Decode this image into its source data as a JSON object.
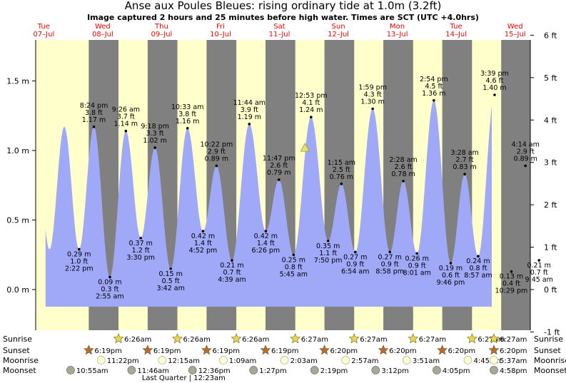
{
  "title": "Anse aux Poules Bleues: rising  ordinary tide at 1.0m (3.2ft)",
  "subtitle": "Image captured 2 hours and 25 minutes before high water. Times are SCT (UTC +4.0hrs)",
  "colors": {
    "day": "#ffffcc",
    "night": "#808080",
    "tide_fill": "#a0a8f8",
    "day_label": "#ff0000",
    "now_marker": "#e8e070",
    "sunrise_icon": "#e8d84a",
    "sunset_icon": "#b86a32",
    "moonrise_icon": "#ffffd8",
    "moonset_icon": "#a8a898"
  },
  "chart_data": {
    "type": "area",
    "title": "Anse aux Poules Bleues: rising  ordinary tide at 1.0m (3.2ft)",
    "x_unit": "hours from 00:00 Tue 07-Jul",
    "xlim": [
      -3.3,
      198.2
    ],
    "ylim_m": [
      -0.31,
      1.8
    ],
    "ylim_ft": [
      -1,
      6
    ],
    "left_ticks": [
      "0.0 m",
      "0.5 m",
      "1.0 m",
      "1.5 m"
    ],
    "left_tick_values": [
      0,
      0.5,
      1.0,
      1.5
    ],
    "right_ticks": [
      "-1 ft",
      "0 ft",
      "1 ft",
      "2 ft",
      "3 ft",
      "4 ft",
      "5 ft",
      "6 ft"
    ],
    "right_tick_values": [
      -1,
      0,
      1,
      2,
      3,
      4,
      5,
      6
    ],
    "days": [
      {
        "name": "Tue",
        "date": "07–Jul"
      },
      {
        "name": "Wed",
        "date": "08–Jul"
      },
      {
        "name": "Thu",
        "date": "09–Jul"
      },
      {
        "name": "Fri",
        "date": "10–Jul"
      },
      {
        "name": "Sat",
        "date": "11–Jul"
      },
      {
        "name": "Sun",
        "date": "12–Jul"
      },
      {
        "name": "Mon",
        "date": "13–Jul"
      },
      {
        "name": "Tue",
        "date": "14–Jul"
      },
      {
        "name": "Wed",
        "date": "15–Jul"
      }
    ],
    "start_hour": 0.7,
    "start_height": 0.95,
    "end_hour": 182.5,
    "tides": [
      {
        "kind": "low",
        "hour": 14.37,
        "m": 0.29,
        "lines": [
          "0.29 m",
          "1.0 ft",
          "2:22 pm"
        ]
      },
      {
        "kind": "high",
        "hour": 20.4,
        "m": 1.17,
        "lines": [
          "8:24 pm",
          "3.8 ft",
          "1.17 m"
        ]
      },
      {
        "kind": "low",
        "hour": 26.92,
        "m": 0.09,
        "lines": [
          "0.09 m",
          "0.3 ft",
          "2:55 am"
        ]
      },
      {
        "kind": "high",
        "hour": 33.43,
        "m": 1.14,
        "lines": [
          "9:26 am",
          "3.7 ft",
          "1.14 m"
        ]
      },
      {
        "kind": "low",
        "hour": 39.5,
        "m": 0.37,
        "lines": [
          "0.37 m",
          "1.2 ft",
          "3:30 pm"
        ]
      },
      {
        "kind": "high",
        "hour": 45.3,
        "m": 1.02,
        "lines": [
          "9:18 pm",
          "3.3 ft",
          "1.02 m"
        ]
      },
      {
        "kind": "low",
        "hour": 51.7,
        "m": 0.15,
        "lines": [
          "0.15 m",
          "0.5 ft",
          "3:42 am"
        ]
      },
      {
        "kind": "high",
        "hour": 58.55,
        "m": 1.16,
        "lines": [
          "10:33 am",
          "3.8 ft",
          "1.16 m"
        ]
      },
      {
        "kind": "low",
        "hour": 64.87,
        "m": 0.42,
        "lines": [
          "0.42 m",
          "1.4 ft",
          "4:52 pm"
        ]
      },
      {
        "kind": "high",
        "hour": 70.37,
        "m": 0.89,
        "lines": [
          "10:22 pm",
          "2.9 ft",
          "0.89 m"
        ]
      },
      {
        "kind": "low",
        "hour": 76.65,
        "m": 0.21,
        "lines": [
          "0.21 m",
          "0.7 ft",
          "4:39 am"
        ]
      },
      {
        "kind": "high",
        "hour": 83.73,
        "m": 1.19,
        "lines": [
          "11:44 am",
          "3.9 ft",
          "1.19 m"
        ]
      },
      {
        "kind": "low",
        "hour": 90.43,
        "m": 0.42,
        "lines": [
          "0.42 m",
          "1.4 ft",
          "6:26 pm"
        ]
      },
      {
        "kind": "high",
        "hour": 95.78,
        "m": 0.79,
        "lines": [
          "11:47 pm",
          "2.6 ft",
          "0.79 m"
        ]
      },
      {
        "kind": "low",
        "hour": 101.75,
        "m": 0.25,
        "lines": [
          "0.25 m",
          "0.8 ft",
          "5:45 am"
        ]
      },
      {
        "kind": "high",
        "hour": 108.88,
        "m": 1.24,
        "lines": [
          "12:53 pm",
          "4.1 ft",
          "1.24 m"
        ]
      },
      {
        "kind": "low",
        "hour": 115.83,
        "m": 0.35,
        "lines": [
          "0.35 m",
          "1.1 ft",
          "7:50 pm"
        ]
      },
      {
        "kind": "high",
        "hour": 121.25,
        "m": 0.76,
        "lines": [
          "1:15 am",
          "2.5 ft",
          "0.76 m"
        ]
      },
      {
        "kind": "low",
        "hour": 126.9,
        "m": 0.27,
        "lines": [
          "0.27 m",
          "0.9 ft",
          "6:54 am"
        ]
      },
      {
        "kind": "high",
        "hour": 133.98,
        "m": 1.3,
        "lines": [
          "1:59 pm",
          "4.3 ft",
          "1.30 m"
        ]
      },
      {
        "kind": "low",
        "hour": 140.97,
        "m": 0.27,
        "lines": [
          "0.27 m",
          "0.9 ft",
          "8:58 pm"
        ]
      },
      {
        "kind": "high",
        "hour": 146.47,
        "m": 0.78,
        "lines": [
          "2:28 am",
          "2.6 ft",
          "0.78 m"
        ]
      },
      {
        "kind": "low",
        "hour": 152.02,
        "m": 0.26,
        "lines": [
          "0.26 m",
          "0.9 ft",
          "8:01 am"
        ]
      },
      {
        "kind": "high",
        "hour": 158.9,
        "m": 1.36,
        "lines": [
          "2:54 pm",
          "4.5 ft",
          "1.36 m"
        ]
      },
      {
        "kind": "low",
        "hour": 165.77,
        "m": 0.19,
        "lines": [
          "0.19 m",
          "0.6 ft",
          "9:46 pm"
        ]
      },
      {
        "kind": "high",
        "hour": 171.47,
        "m": 0.83,
        "lines": [
          "3:28 am",
          "2.7 ft",
          "0.83 m"
        ]
      },
      {
        "kind": "low",
        "hour": 176.95,
        "m": 0.24,
        "lines": [
          "0.24 m",
          "0.8 ft",
          "8:57 am"
        ]
      },
      {
        "kind": "high",
        "hour": 183.65,
        "m": 1.4,
        "lines": [
          "3:39 pm",
          "4.6 ft",
          "1.40 m"
        ]
      },
      {
        "kind": "low",
        "hour": 190.48,
        "m": 0.13,
        "lines": [
          "0.13 m",
          "0.4 ft",
          "10:29 pm"
        ]
      },
      {
        "kind": "high",
        "hour": 196.23,
        "m": 0.89,
        "lines": [
          "4:14 am",
          "2.9 ft",
          "0.89 m"
        ]
      },
      {
        "kind": "low",
        "hour": 201.75,
        "m": 0.21,
        "lines": [
          "0.21 m",
          "0.7 ft",
          "9:45 am"
        ]
      }
    ],
    "now_marker": {
      "hour": 106.45,
      "m": 1.02
    },
    "sunrise_hours": [
      30.43,
      54.43,
      78.43,
      102.45,
      126.45,
      150.45,
      174.45,
      198.45
    ],
    "sunset_hours": [
      18.32,
      42.32,
      66.32,
      90.32,
      114.33,
      138.33,
      162.33,
      186.33
    ],
    "rows": [
      {
        "label": "Sunrise",
        "kind": "sunrise",
        "items": [
          {
            "hour": 30.43,
            "time": "6:26am"
          },
          {
            "hour": 54.43,
            "time": "6:26am"
          },
          {
            "hour": 78.43,
            "time": "6:26am"
          },
          {
            "hour": 102.45,
            "time": "6:27am"
          },
          {
            "hour": 126.45,
            "time": "6:27am"
          },
          {
            "hour": 150.45,
            "time": "6:27am"
          },
          {
            "hour": 174.45,
            "time": "6:27am"
          },
          {
            "hour": 198.45,
            "time": "6:27am"
          }
        ]
      },
      {
        "label": "Sunset",
        "kind": "sunset",
        "items": [
          {
            "hour": 18.32,
            "time": "6:19pm"
          },
          {
            "hour": 42.32,
            "time": "6:19pm"
          },
          {
            "hour": 66.32,
            "time": "6:19pm"
          },
          {
            "hour": 90.32,
            "time": "6:19pm"
          },
          {
            "hour": 114.33,
            "time": "6:20pm"
          },
          {
            "hour": 138.33,
            "time": "6:20pm"
          },
          {
            "hour": 162.33,
            "time": "6:20pm"
          },
          {
            "hour": 186.33,
            "time": "6:20pm"
          }
        ]
      },
      {
        "label": "Moonrise",
        "kind": "moonrise",
        "items": [
          {
            "hour": 23.37,
            "time": "11:22pm"
          },
          {
            "hour": 48.25,
            "time": "12:15am"
          },
          {
            "hour": 73.15,
            "time": "1:09am"
          },
          {
            "hour": 98.05,
            "time": "2:03am"
          },
          {
            "hour": 122.95,
            "time": "2:57am"
          },
          {
            "hour": 147.85,
            "time": "3:51am"
          },
          {
            "hour": 172.75,
            "time": "4:45am"
          },
          {
            "hour": 197.62,
            "time": "5:37am"
          }
        ]
      },
      {
        "label": "Moonset",
        "kind": "moonset",
        "items": [
          {
            "hour": 10.92,
            "time": "10:55am"
          },
          {
            "hour": 35.77,
            "time": "11:46am"
          },
          {
            "hour": 60.6,
            "time": "12:36pm"
          },
          {
            "hour": 85.45,
            "time": "1:27pm"
          },
          {
            "hour": 110.32,
            "time": "2:19pm"
          },
          {
            "hour": 135.2,
            "time": "3:12pm"
          },
          {
            "hour": 160.08,
            "time": "4:05pm"
          },
          {
            "hour": 184.97,
            "time": "4:58pm"
          }
        ]
      }
    ],
    "footnote": "Last Quarter | 12:23am"
  }
}
